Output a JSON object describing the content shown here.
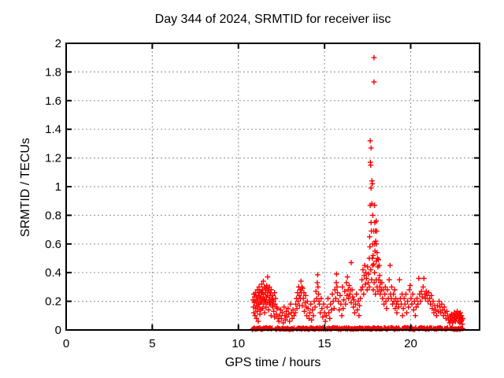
{
  "window": {
    "background": "#ffffff"
  },
  "chart_data": {
    "type": "scatter",
    "title": "Day 344 of 2024, SRMTID for receiver iisc",
    "xlabel": "GPS time / hours",
    "ylabel": "SRMTID / TECUs",
    "xlim": [
      0,
      24
    ],
    "ylim": [
      0,
      2
    ],
    "xticks": {
      "values": [
        0,
        5,
        10,
        15,
        20
      ],
      "labels": [
        "0",
        "5",
        "10",
        "15",
        "20"
      ]
    },
    "yticks": {
      "values": [
        0,
        0.2,
        0.4,
        0.6,
        0.8,
        1,
        1.2,
        1.4,
        1.6,
        1.8,
        2
      ],
      "labels": [
        "0",
        "0.2",
        "0.4",
        "0.6",
        "0.8",
        "1",
        "1.2",
        "1.4",
        "1.6",
        "1.8",
        "2"
      ]
    },
    "grid": true,
    "legend_position": "none",
    "marker": {
      "shape": "plus",
      "color": "#ff0000",
      "size": 7
    },
    "grid_color": "#a0a0a0",
    "axis_color": "#000000",
    "data_start_hour": 10.8,
    "data_end_hour": 23.05,
    "max_point": [
      17.87,
      1.9
    ],
    "points": [
      [
        10.85,
        0.21
      ],
      [
        10.87,
        0.16
      ],
      [
        10.9,
        0.25
      ],
      [
        10.9,
        0.12
      ],
      [
        10.93,
        0.19
      ],
      [
        10.95,
        0.23
      ],
      [
        10.97,
        0.1
      ],
      [
        11.0,
        0.15
      ],
      [
        11.0,
        0.26
      ],
      [
        11.02,
        0.2
      ],
      [
        11.05,
        0.23
      ],
      [
        11.05,
        0.08
      ],
      [
        11.07,
        0.17
      ],
      [
        11.1,
        0.28
      ],
      [
        11.1,
        0.13
      ],
      [
        11.12,
        0.21
      ],
      [
        11.15,
        0.24
      ],
      [
        11.15,
        0.06
      ],
      [
        11.17,
        0.18
      ],
      [
        11.2,
        0.3
      ],
      [
        11.2,
        0.16
      ],
      [
        11.22,
        0.26
      ],
      [
        11.25,
        0.22
      ],
      [
        11.25,
        0.11
      ],
      [
        11.27,
        0.19
      ],
      [
        11.3,
        0.27
      ],
      [
        11.3,
        0.14
      ],
      [
        11.32,
        0.23
      ],
      [
        11.35,
        0.32
      ],
      [
        11.35,
        0.2
      ],
      [
        11.37,
        0.26
      ],
      [
        11.4,
        0.28
      ],
      [
        11.4,
        0.15
      ],
      [
        11.42,
        0.22
      ],
      [
        11.45,
        0.34
      ],
      [
        11.45,
        0.25
      ],
      [
        11.47,
        0.18
      ],
      [
        11.5,
        0.3
      ],
      [
        11.5,
        0.21
      ],
      [
        11.52,
        0.12
      ],
      [
        11.55,
        0.26
      ],
      [
        11.57,
        0.2
      ],
      [
        11.6,
        0.29
      ],
      [
        11.6,
        0.16
      ],
      [
        11.63,
        0.23
      ],
      [
        11.65,
        0.31
      ],
      [
        11.67,
        0.19
      ],
      [
        11.7,
        0.37
      ],
      [
        11.7,
        0.24
      ],
      [
        11.72,
        0.28
      ],
      [
        11.75,
        0.27
      ],
      [
        11.75,
        0.14
      ],
      [
        11.78,
        0.21
      ],
      [
        11.8,
        0.3
      ],
      [
        11.8,
        0.18
      ],
      [
        11.83,
        0.24
      ],
      [
        11.85,
        0.19
      ],
      [
        11.88,
        0.26
      ],
      [
        11.9,
        0.28
      ],
      [
        11.9,
        0.1
      ],
      [
        11.93,
        0.22
      ],
      [
        11.95,
        0.21
      ],
      [
        11.98,
        0.17
      ],
      [
        12.0,
        0.24
      ],
      [
        12.0,
        0.16
      ],
      [
        12.03,
        0.2
      ],
      [
        12.05,
        0.13
      ],
      [
        12.1,
        0.26
      ],
      [
        12.1,
        0.09
      ],
      [
        12.13,
        0.18
      ],
      [
        12.15,
        0.22
      ],
      [
        12.2,
        0.11
      ],
      [
        12.22,
        0.16
      ],
      [
        12.25,
        0.15
      ],
      [
        12.3,
        0.08
      ],
      [
        12.35,
        0.06
      ],
      [
        12.4,
        0.1
      ],
      [
        12.45,
        0.14
      ],
      [
        12.5,
        0.08
      ],
      [
        12.55,
        0.12
      ],
      [
        12.6,
        0.05
      ],
      [
        12.65,
        0.16
      ],
      [
        12.7,
        0.1
      ],
      [
        12.72,
        0.07
      ],
      [
        12.78,
        0.13
      ],
      [
        12.82,
        0.09
      ],
      [
        12.88,
        0.15
      ],
      [
        12.92,
        0.11
      ],
      [
        12.97,
        0.06
      ],
      [
        13.02,
        0.18
      ],
      [
        13.07,
        0.12
      ],
      [
        13.12,
        0.08
      ],
      [
        13.17,
        0.14
      ],
      [
        13.22,
        0.1
      ],
      [
        13.3,
        0.12
      ],
      [
        13.33,
        0.18
      ],
      [
        13.37,
        0.22
      ],
      [
        13.4,
        0.15
      ],
      [
        13.43,
        0.26
      ],
      [
        13.47,
        0.2
      ],
      [
        13.5,
        0.3
      ],
      [
        13.53,
        0.24
      ],
      [
        13.55,
        0.17
      ],
      [
        13.58,
        0.28
      ],
      [
        13.6,
        0.22
      ],
      [
        13.63,
        0.34
      ],
      [
        13.65,
        0.26
      ],
      [
        13.68,
        0.3
      ],
      [
        13.7,
        0.17
      ],
      [
        13.73,
        0.29
      ],
      [
        13.77,
        0.22
      ],
      [
        13.8,
        0.26
      ],
      [
        13.83,
        0.13
      ],
      [
        13.87,
        0.19
      ],
      [
        13.9,
        0.24
      ],
      [
        13.93,
        0.16
      ],
      [
        13.97,
        0.1
      ],
      [
        14.0,
        0.2
      ],
      [
        14.05,
        0.15
      ],
      [
        14.1,
        0.08
      ],
      [
        14.15,
        0.12
      ],
      [
        14.2,
        0.18
      ],
      [
        14.25,
        0.07
      ],
      [
        14.3,
        0.14
      ],
      [
        14.35,
        0.1
      ],
      [
        14.4,
        0.2
      ],
      [
        14.45,
        0.16
      ],
      [
        14.5,
        0.27
      ],
      [
        14.55,
        0.22
      ],
      [
        14.58,
        0.33
      ],
      [
        14.6,
        0.385
      ],
      [
        14.62,
        0.3
      ],
      [
        14.65,
        0.25
      ],
      [
        14.68,
        0.2
      ],
      [
        14.7,
        0.18
      ],
      [
        14.75,
        0.12
      ],
      [
        14.8,
        0.22
      ],
      [
        14.85,
        0.15
      ],
      [
        14.9,
        0.09
      ],
      [
        14.95,
        0.18
      ],
      [
        15.0,
        0.12
      ],
      [
        15.05,
        0.06
      ],
      [
        15.1,
        0.1
      ],
      [
        15.15,
        0.16
      ],
      [
        15.2,
        0.22
      ],
      [
        15.25,
        0.12
      ],
      [
        15.3,
        0.08
      ],
      [
        15.35,
        0.18
      ],
      [
        15.4,
        0.14
      ],
      [
        15.45,
        0.25
      ],
      [
        15.5,
        0.2
      ],
      [
        15.55,
        0.15
      ],
      [
        15.6,
        0.28
      ],
      [
        15.65,
        0.22
      ],
      [
        15.68,
        0.33
      ],
      [
        15.7,
        0.39
      ],
      [
        15.72,
        0.3
      ],
      [
        15.75,
        0.26
      ],
      [
        15.8,
        0.2
      ],
      [
        15.85,
        0.14
      ],
      [
        15.9,
        0.24
      ],
      [
        15.95,
        0.18
      ],
      [
        16.0,
        0.1
      ],
      [
        16.03,
        0.3
      ],
      [
        16.08,
        0.15
      ],
      [
        16.12,
        0.21
      ],
      [
        16.17,
        0.27
      ],
      [
        16.22,
        0.18
      ],
      [
        16.27,
        0.33
      ],
      [
        16.3,
        0.24
      ],
      [
        16.33,
        0.37
      ],
      [
        16.37,
        0.28
      ],
      [
        16.4,
        0.22
      ],
      [
        16.43,
        0.31
      ],
      [
        16.47,
        0.25
      ],
      [
        16.5,
        0.28
      ],
      [
        16.55,
        0.47
      ],
      [
        16.55,
        0.19
      ],
      [
        16.6,
        0.28
      ],
      [
        16.63,
        0.23
      ],
      [
        16.67,
        0.16
      ],
      [
        16.7,
        0.21
      ],
      [
        16.75,
        0.12
      ],
      [
        16.8,
        0.18
      ],
      [
        16.85,
        0.25
      ],
      [
        16.9,
        0.14
      ],
      [
        16.95,
        0.2
      ],
      [
        17.0,
        0.1
      ],
      [
        17.03,
        0.17
      ],
      [
        17.08,
        0.22
      ],
      [
        17.12,
        0.28
      ],
      [
        17.17,
        0.35
      ],
      [
        17.2,
        0.3
      ],
      [
        17.23,
        0.42
      ],
      [
        17.27,
        0.25
      ],
      [
        17.3,
        0.38
      ],
      [
        17.33,
        0.45
      ],
      [
        17.37,
        0.32
      ],
      [
        17.4,
        0.4
      ],
      [
        17.43,
        0.36
      ],
      [
        17.47,
        0.28
      ],
      [
        17.5,
        0.44
      ],
      [
        17.53,
        0.33
      ],
      [
        17.56,
        0.39
      ],
      [
        17.6,
        0.5
      ],
      [
        17.6,
        0.3
      ],
      [
        17.62,
        0.65
      ],
      [
        17.63,
        0.58
      ],
      [
        17.65,
        1.32
      ],
      [
        17.65,
        0.87
      ],
      [
        17.66,
        1.17
      ],
      [
        17.68,
        1.15
      ],
      [
        17.68,
        0.42
      ],
      [
        17.7,
        1.27
      ],
      [
        17.7,
        0.99
      ],
      [
        17.7,
        0.75
      ],
      [
        17.72,
        0.69
      ],
      [
        17.73,
        0.35
      ],
      [
        17.75,
        1.04
      ],
      [
        17.75,
        0.88
      ],
      [
        17.77,
        0.5
      ],
      [
        17.78,
        1.02
      ],
      [
        17.8,
        0.8
      ],
      [
        17.8,
        0.6
      ],
      [
        17.8,
        0.45
      ],
      [
        17.82,
        0.52
      ],
      [
        17.83,
        0.28
      ],
      [
        17.85,
        0.69
      ],
      [
        17.85,
        0.46
      ],
      [
        17.87,
        1.9
      ],
      [
        17.87,
        1.73
      ],
      [
        17.88,
        0.33
      ],
      [
        17.9,
        0.87
      ],
      [
        17.9,
        0.6
      ],
      [
        17.9,
        0.4
      ],
      [
        17.92,
        0.75
      ],
      [
        17.93,
        0.55
      ],
      [
        17.95,
        0.69
      ],
      [
        17.95,
        0.25
      ],
      [
        17.97,
        0.62
      ],
      [
        18.0,
        0.76
      ],
      [
        18.0,
        0.6
      ],
      [
        18.0,
        0.48
      ],
      [
        18.0,
        0.35
      ],
      [
        18.03,
        0.69
      ],
      [
        18.05,
        0.54
      ],
      [
        18.05,
        0.3
      ],
      [
        18.08,
        0.5
      ],
      [
        18.1,
        0.44
      ],
      [
        18.1,
        0.27
      ],
      [
        18.13,
        0.49
      ],
      [
        18.15,
        0.35
      ],
      [
        18.17,
        0.45
      ],
      [
        18.2,
        0.38
      ],
      [
        18.2,
        0.3
      ],
      [
        18.23,
        0.25
      ],
      [
        18.25,
        0.33
      ],
      [
        18.3,
        0.28
      ],
      [
        18.33,
        0.33
      ],
      [
        18.37,
        0.22
      ],
      [
        18.4,
        0.28
      ],
      [
        18.45,
        0.18
      ],
      [
        18.5,
        0.25
      ],
      [
        18.53,
        0.3
      ],
      [
        18.57,
        0.2
      ],
      [
        18.6,
        0.15
      ],
      [
        18.65,
        0.28
      ],
      [
        18.7,
        0.22
      ],
      [
        18.75,
        0.35
      ],
      [
        18.8,
        0.45
      ],
      [
        18.83,
        0.25
      ],
      [
        18.87,
        0.22
      ],
      [
        18.9,
        0.3
      ],
      [
        18.95,
        0.18
      ],
      [
        19.0,
        0.25
      ],
      [
        19.03,
        0.2
      ],
      [
        19.07,
        0.28
      ],
      [
        19.1,
        0.15
      ],
      [
        19.13,
        0.22
      ],
      [
        19.17,
        0.18
      ],
      [
        19.2,
        0.12
      ],
      [
        19.25,
        0.2
      ],
      [
        19.3,
        0.16
      ],
      [
        19.35,
        0.35
      ],
      [
        19.4,
        0.22
      ],
      [
        19.45,
        0.18
      ],
      [
        19.5,
        0.25
      ],
      [
        19.53,
        0.1
      ],
      [
        19.57,
        0.15
      ],
      [
        19.62,
        0.22
      ],
      [
        19.67,
        0.18
      ],
      [
        19.72,
        0.25
      ],
      [
        19.77,
        0.12
      ],
      [
        19.82,
        0.2
      ],
      [
        19.87,
        0.16
      ],
      [
        19.92,
        0.28
      ],
      [
        19.97,
        0.31
      ],
      [
        20.02,
        0.22
      ],
      [
        20.07,
        0.18
      ],
      [
        20.12,
        0.25
      ],
      [
        20.17,
        0.14
      ],
      [
        20.22,
        0.2
      ],
      [
        20.27,
        0.1
      ],
      [
        20.32,
        0.16
      ],
      [
        20.37,
        0.22
      ],
      [
        20.42,
        0.18
      ],
      [
        20.47,
        0.36
      ],
      [
        20.52,
        0.25
      ],
      [
        20.57,
        0.2
      ],
      [
        20.62,
        0.27
      ],
      [
        20.67,
        0.23
      ],
      [
        20.72,
        0.3
      ],
      [
        20.77,
        0.36
      ],
      [
        20.82,
        0.25
      ],
      [
        20.85,
        0.22
      ],
      [
        20.9,
        0.27
      ],
      [
        20.95,
        0.24
      ],
      [
        21.0,
        0.2
      ],
      [
        21.05,
        0.26
      ],
      [
        21.1,
        0.22
      ],
      [
        21.15,
        0.18
      ],
      [
        21.2,
        0.24
      ],
      [
        21.25,
        0.15
      ],
      [
        21.3,
        0.2
      ],
      [
        21.35,
        0.12
      ],
      [
        21.4,
        0.17
      ],
      [
        21.45,
        0.14
      ],
      [
        21.5,
        0.1
      ],
      [
        21.55,
        0.17
      ],
      [
        21.6,
        0.13
      ],
      [
        21.65,
        0.2
      ],
      [
        21.7,
        0.16
      ],
      [
        21.75,
        0.12
      ],
      [
        21.8,
        0.18
      ],
      [
        21.85,
        0.14
      ],
      [
        21.9,
        0.1
      ],
      [
        21.95,
        0.16
      ],
      [
        22.0,
        0.12
      ],
      [
        22.05,
        0.08
      ],
      [
        22.1,
        0.13
      ],
      [
        22.15,
        0.1
      ],
      [
        22.2,
        0.07
      ],
      [
        22.25,
        0.05
      ],
      [
        22.3,
        0.09
      ],
      [
        22.33,
        0.06
      ],
      [
        22.37,
        0.11
      ],
      [
        22.4,
        0.08
      ],
      [
        22.43,
        0.05
      ],
      [
        22.47,
        0.1
      ],
      [
        22.5,
        0.07
      ],
      [
        22.53,
        0.12
      ],
      [
        22.57,
        0.09
      ],
      [
        22.6,
        0.06
      ],
      [
        22.63,
        0.11
      ],
      [
        22.67,
        0.08
      ],
      [
        22.7,
        0.13
      ],
      [
        22.73,
        0.1
      ],
      [
        22.77,
        0.06
      ],
      [
        22.8,
        0.11
      ],
      [
        22.83,
        0.08
      ],
      [
        22.85,
        0.05
      ],
      [
        22.88,
        0.12
      ],
      [
        22.9,
        0.09
      ],
      [
        22.93,
        0.06
      ],
      [
        22.95,
        0.1
      ],
      [
        22.97,
        0.07
      ],
      [
        23.0,
        0.04
      ],
      [
        23.02,
        0.08
      ]
    ],
    "baseline_band": {
      "description": "dense band of near-zero SRMTID values along y=0",
      "y_range": [
        0.0,
        0.02
      ],
      "segments": [
        [
          10.8,
          11.98
        ],
        [
          12.16,
          12.48
        ],
        [
          12.52,
          13.24
        ],
        [
          13.4,
          14.28
        ],
        [
          14.34,
          15.08
        ],
        [
          15.14,
          16.02
        ],
        [
          16.1,
          17.28
        ],
        [
          17.34,
          18.34
        ],
        [
          18.46,
          18.78
        ],
        [
          18.84,
          19.38
        ],
        [
          19.52,
          20.34
        ],
        [
          20.46,
          21.28
        ],
        [
          21.34,
          21.88
        ],
        [
          21.98,
          22.18
        ],
        [
          22.3,
          23.05
        ]
      ]
    }
  }
}
